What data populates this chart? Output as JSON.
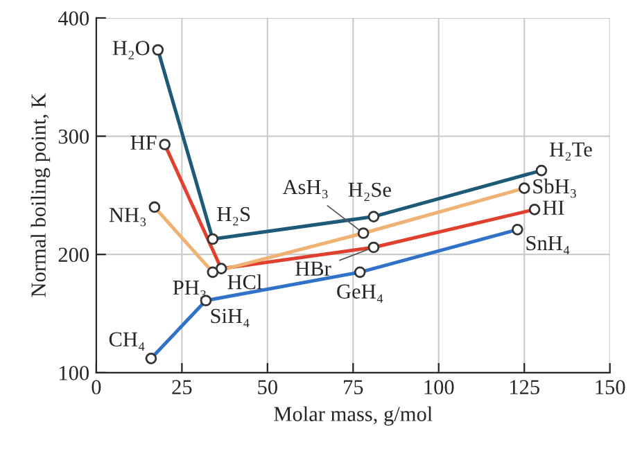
{
  "chart_data": {
    "type": "line",
    "xlabel": "Molar mass, g/mol",
    "ylabel": "Normal boiling point, K",
    "xlim": [
      0,
      150
    ],
    "xticks": [
      0,
      25,
      50,
      75,
      100,
      125,
      150
    ],
    "ylim": [
      100,
      400
    ],
    "yticks": [
      100,
      200,
      300,
      400
    ],
    "grid": true,
    "marker": "circle",
    "line_style": "solid",
    "series": [
      {
        "color": "#1d5a78",
        "x": [
          18,
          34,
          81,
          130
        ],
        "values": [
          373,
          213,
          232,
          271
        ]
      },
      {
        "color": "#e0402e",
        "x": [
          20,
          36.5,
          81,
          128
        ],
        "values": [
          293,
          188,
          206,
          238
        ]
      },
      {
        "color": "#efb273",
        "x": [
          17,
          34,
          78,
          125
        ],
        "values": [
          240,
          185,
          218,
          256
        ]
      },
      {
        "color": "#2f72c8",
        "x": [
          16,
          32,
          77,
          123
        ],
        "values": [
          112,
          161,
          185,
          221
        ]
      }
    ],
    "annotations": [
      {
        "text": "H₂O",
        "x": 18,
        "y": 373
      },
      {
        "text": "H₂S",
        "x": 34,
        "y": 213
      },
      {
        "text": "H₂Se",
        "x": 81,
        "y": 232
      },
      {
        "text": "H₂Te",
        "x": 130,
        "y": 271
      },
      {
        "text": "HF",
        "x": 20,
        "y": 293
      },
      {
        "text": "HCl",
        "x": 36.5,
        "y": 188
      },
      {
        "text": "HBr",
        "x": 81,
        "y": 206
      },
      {
        "text": "HI",
        "x": 128,
        "y": 238
      },
      {
        "text": "NH₃",
        "x": 17,
        "y": 240
      },
      {
        "text": "PH₃",
        "x": 34,
        "y": 185
      },
      {
        "text": "AsH₃",
        "x": 78,
        "y": 218
      },
      {
        "text": "SbH₃",
        "x": 125,
        "y": 256
      },
      {
        "text": "CH₄",
        "x": 16,
        "y": 112
      },
      {
        "text": "SiH₄",
        "x": 32,
        "y": 161
      },
      {
        "text": "GeH₄",
        "x": 77,
        "y": 185
      },
      {
        "text": "SnH₄",
        "x": 123,
        "y": 221
      }
    ]
  }
}
